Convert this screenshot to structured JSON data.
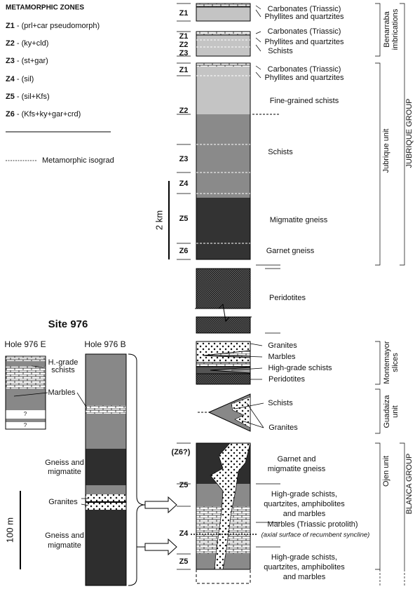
{
  "legend": {
    "title": "METAMORPHIC ZONES",
    "zones": [
      {
        "code": "Z1",
        "text": "- (prl+car pseudomorph)"
      },
      {
        "code": "Z2",
        "text": "- (ky+cld)"
      },
      {
        "code": "Z3",
        "text": "- (st+gar)"
      },
      {
        "code": "Z4",
        "text": "- (sil)"
      },
      {
        "code": "Z5",
        "text": "- (sil+Kfs)"
      },
      {
        "code": "Z6",
        "text": "- (Kfs+ky+gar+crd)"
      }
    ],
    "isograd": "Metamorphic isograd"
  },
  "column": {
    "scale": "2 km",
    "zones": [
      "Z1",
      "Z1",
      "Z2",
      "Z3",
      "Z1",
      "Z2",
      "Z3",
      "Z4",
      "Z5",
      "Z6",
      "(Z6?)",
      "Z5",
      "Z4",
      "Z5"
    ],
    "lithology": [
      [
        "Carbonates (Triassic)"
      ],
      [
        "Phyllites and quartzites"
      ],
      [
        "Carbonates (Triassic)"
      ],
      [
        "Phyllites and quartzites"
      ],
      [
        "Schists"
      ],
      [
        "Carbonates (Triassic)"
      ],
      [
        "Phyllites and quartzites"
      ],
      [
        "Fine-grained schists"
      ],
      [
        "Schists"
      ],
      [
        "Migmatite gneiss"
      ],
      [
        "Garnet gneiss"
      ],
      [
        "Peridotites"
      ],
      [
        "Granites"
      ],
      [
        "Marbles"
      ],
      [
        "High-grade schists"
      ],
      [
        "Peridotites"
      ],
      [
        "Schists"
      ],
      [
        "Granites"
      ],
      [
        "Garnet and",
        "migmatite gneiss"
      ],
      [
        "High-grade schists,",
        "quartzites, amphibolites",
        "and marbles"
      ],
      [
        "Marbles (Triassic protolith)"
      ],
      [
        "(axial surface of recumbent syncline)"
      ],
      [
        "High-grade schists,",
        "quartzites, amphibolites",
        "and marbles"
      ]
    ],
    "units": [
      [
        "Benarraba",
        "imbrications"
      ],
      [
        "Jubrique unit"
      ],
      [
        "JUBRIQUE GROUP"
      ],
      [
        "Montemayor",
        "slices"
      ],
      [
        "Guadaiza",
        "unit"
      ],
      [
        "Ojen unit"
      ],
      [
        "BLANCA GROUP"
      ]
    ]
  },
  "site": {
    "title": "Site 976",
    "holes": [
      "Hole 976 E",
      "Hole 976 B"
    ],
    "labels": [
      [
        "H.-grade",
        "schists"
      ],
      [
        "Marbles"
      ],
      [
        "Gneiss and",
        "migmatite"
      ],
      [
        "Granites"
      ],
      [
        "Gneiss and",
        "migmatite"
      ]
    ],
    "unknown": [
      "?",
      "?"
    ],
    "scale": "100 m"
  }
}
